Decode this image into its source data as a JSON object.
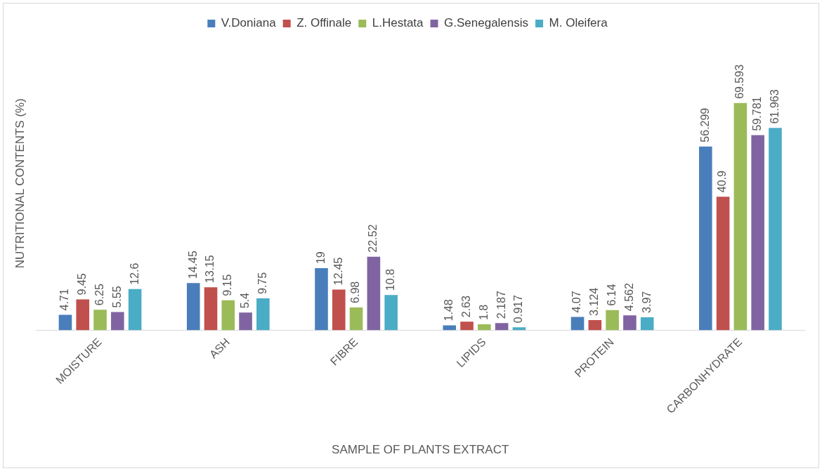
{
  "chart_data": {
    "type": "bar",
    "xlabel": "SAMPLE OF PLANTS EXTRACT",
    "ylabel": "NUTRITIONAL CONTENTS (%)",
    "categories": [
      "MOISTURE",
      "ASH",
      "FIBRE",
      "LIPIDS",
      "PROTEIN",
      "CARBONHYDRATE"
    ],
    "series": [
      {
        "name": "V.Doniana",
        "color": "#4a7ebb",
        "values": [
          4.71,
          14.45,
          19,
          1.48,
          4.07,
          56.299
        ]
      },
      {
        "name": "Z. Offinale",
        "color": "#c0504d",
        "values": [
          9.45,
          13.15,
          12.45,
          2.63,
          3.124,
          40.9
        ]
      },
      {
        "name": "L.Hestata",
        "color": "#9bbb59",
        "values": [
          6.25,
          9.15,
          6.98,
          1.8,
          6.14,
          69.593
        ]
      },
      {
        "name": "G.Senegalensis",
        "color": "#8064a2",
        "values": [
          5.55,
          5.4,
          22.52,
          2.187,
          4.562,
          59.781
        ]
      },
      {
        "name": "M. Oleifera",
        "color": "#4bacc6",
        "values": [
          12.6,
          9.75,
          10.8,
          0.917,
          3.97,
          61.963
        ]
      }
    ],
    "data_labels": true,
    "legend": "top",
    "grid": false
  }
}
